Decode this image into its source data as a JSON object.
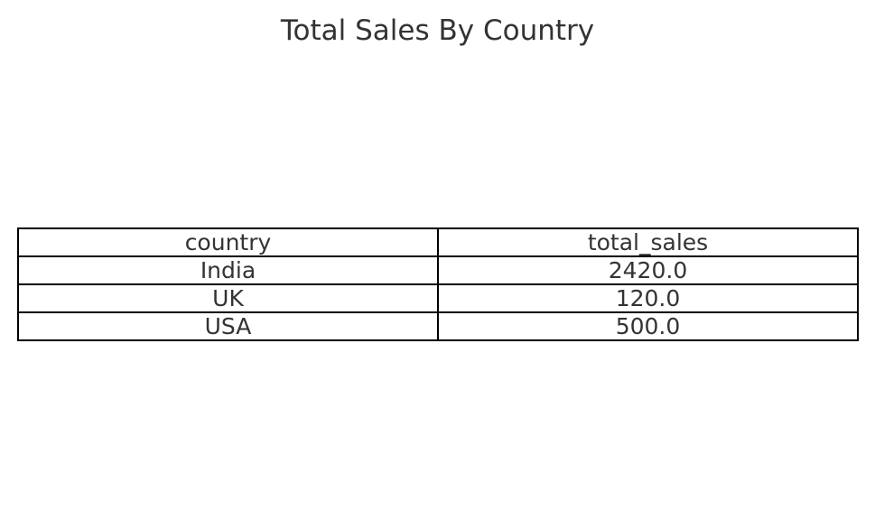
{
  "chart_data": {
    "type": "table",
    "title": "Total Sales By Country",
    "columns": [
      "country",
      "total_sales"
    ],
    "rows": [
      [
        "India",
        "2420.0"
      ],
      [
        "UK",
        "120.0"
      ],
      [
        "USA",
        "500.0"
      ]
    ]
  }
}
